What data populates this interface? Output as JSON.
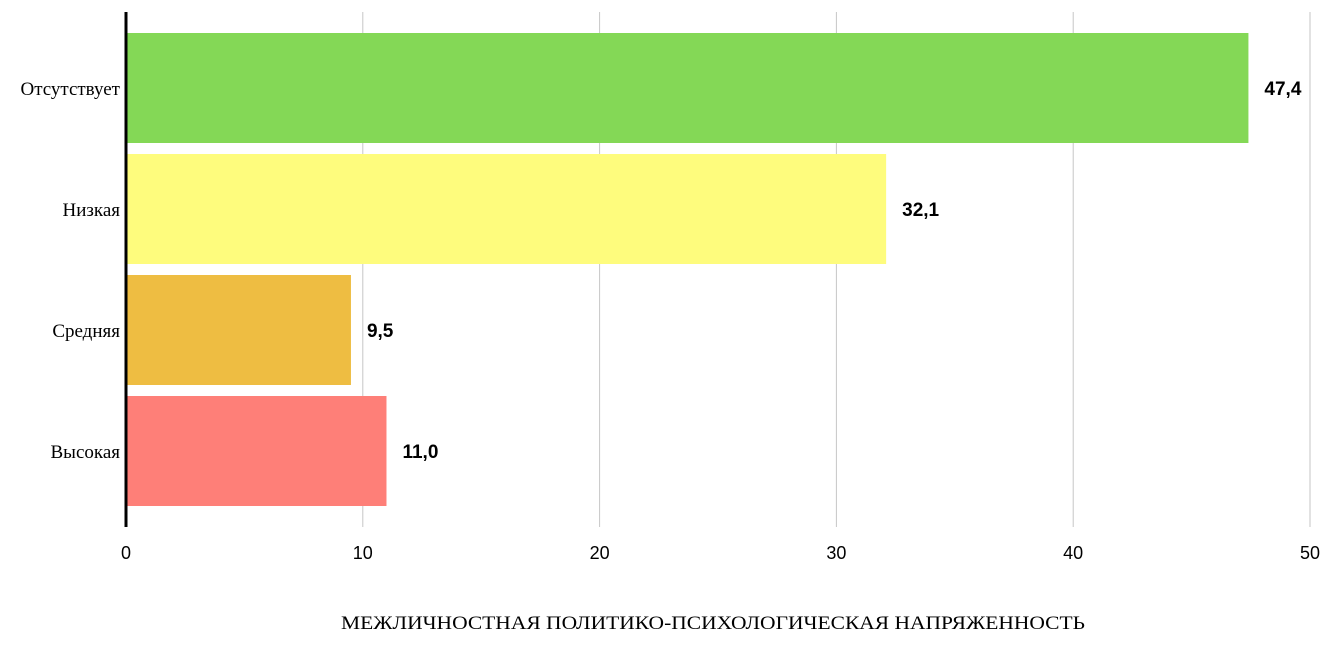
{
  "chart_data": {
    "type": "bar",
    "orientation": "horizontal",
    "categories": [
      "Отсутствует",
      "Низкая",
      "Средняя",
      "Высокая"
    ],
    "values": [
      47.4,
      32.1,
      9.5,
      11.0
    ],
    "data_labels": [
      "47,4",
      "32,1",
      "9,5",
      "11,0"
    ],
    "colors": [
      "#84d856",
      "#fefc7d",
      "#eebd42",
      "#fe7f78"
    ],
    "title": "",
    "xlabel": "МЕЖЛИЧНОСТНАЯ ПОЛИТИКО-ПСИХОЛОГИЧЕСКАЯ НАПРЯЖЕННОСТЬ",
    "ylabel": "",
    "xlim": [
      0,
      50
    ],
    "xticks": [
      "0",
      "10",
      "20",
      "30",
      "40",
      "50"
    ],
    "grid": "vertical",
    "legend": "none"
  }
}
